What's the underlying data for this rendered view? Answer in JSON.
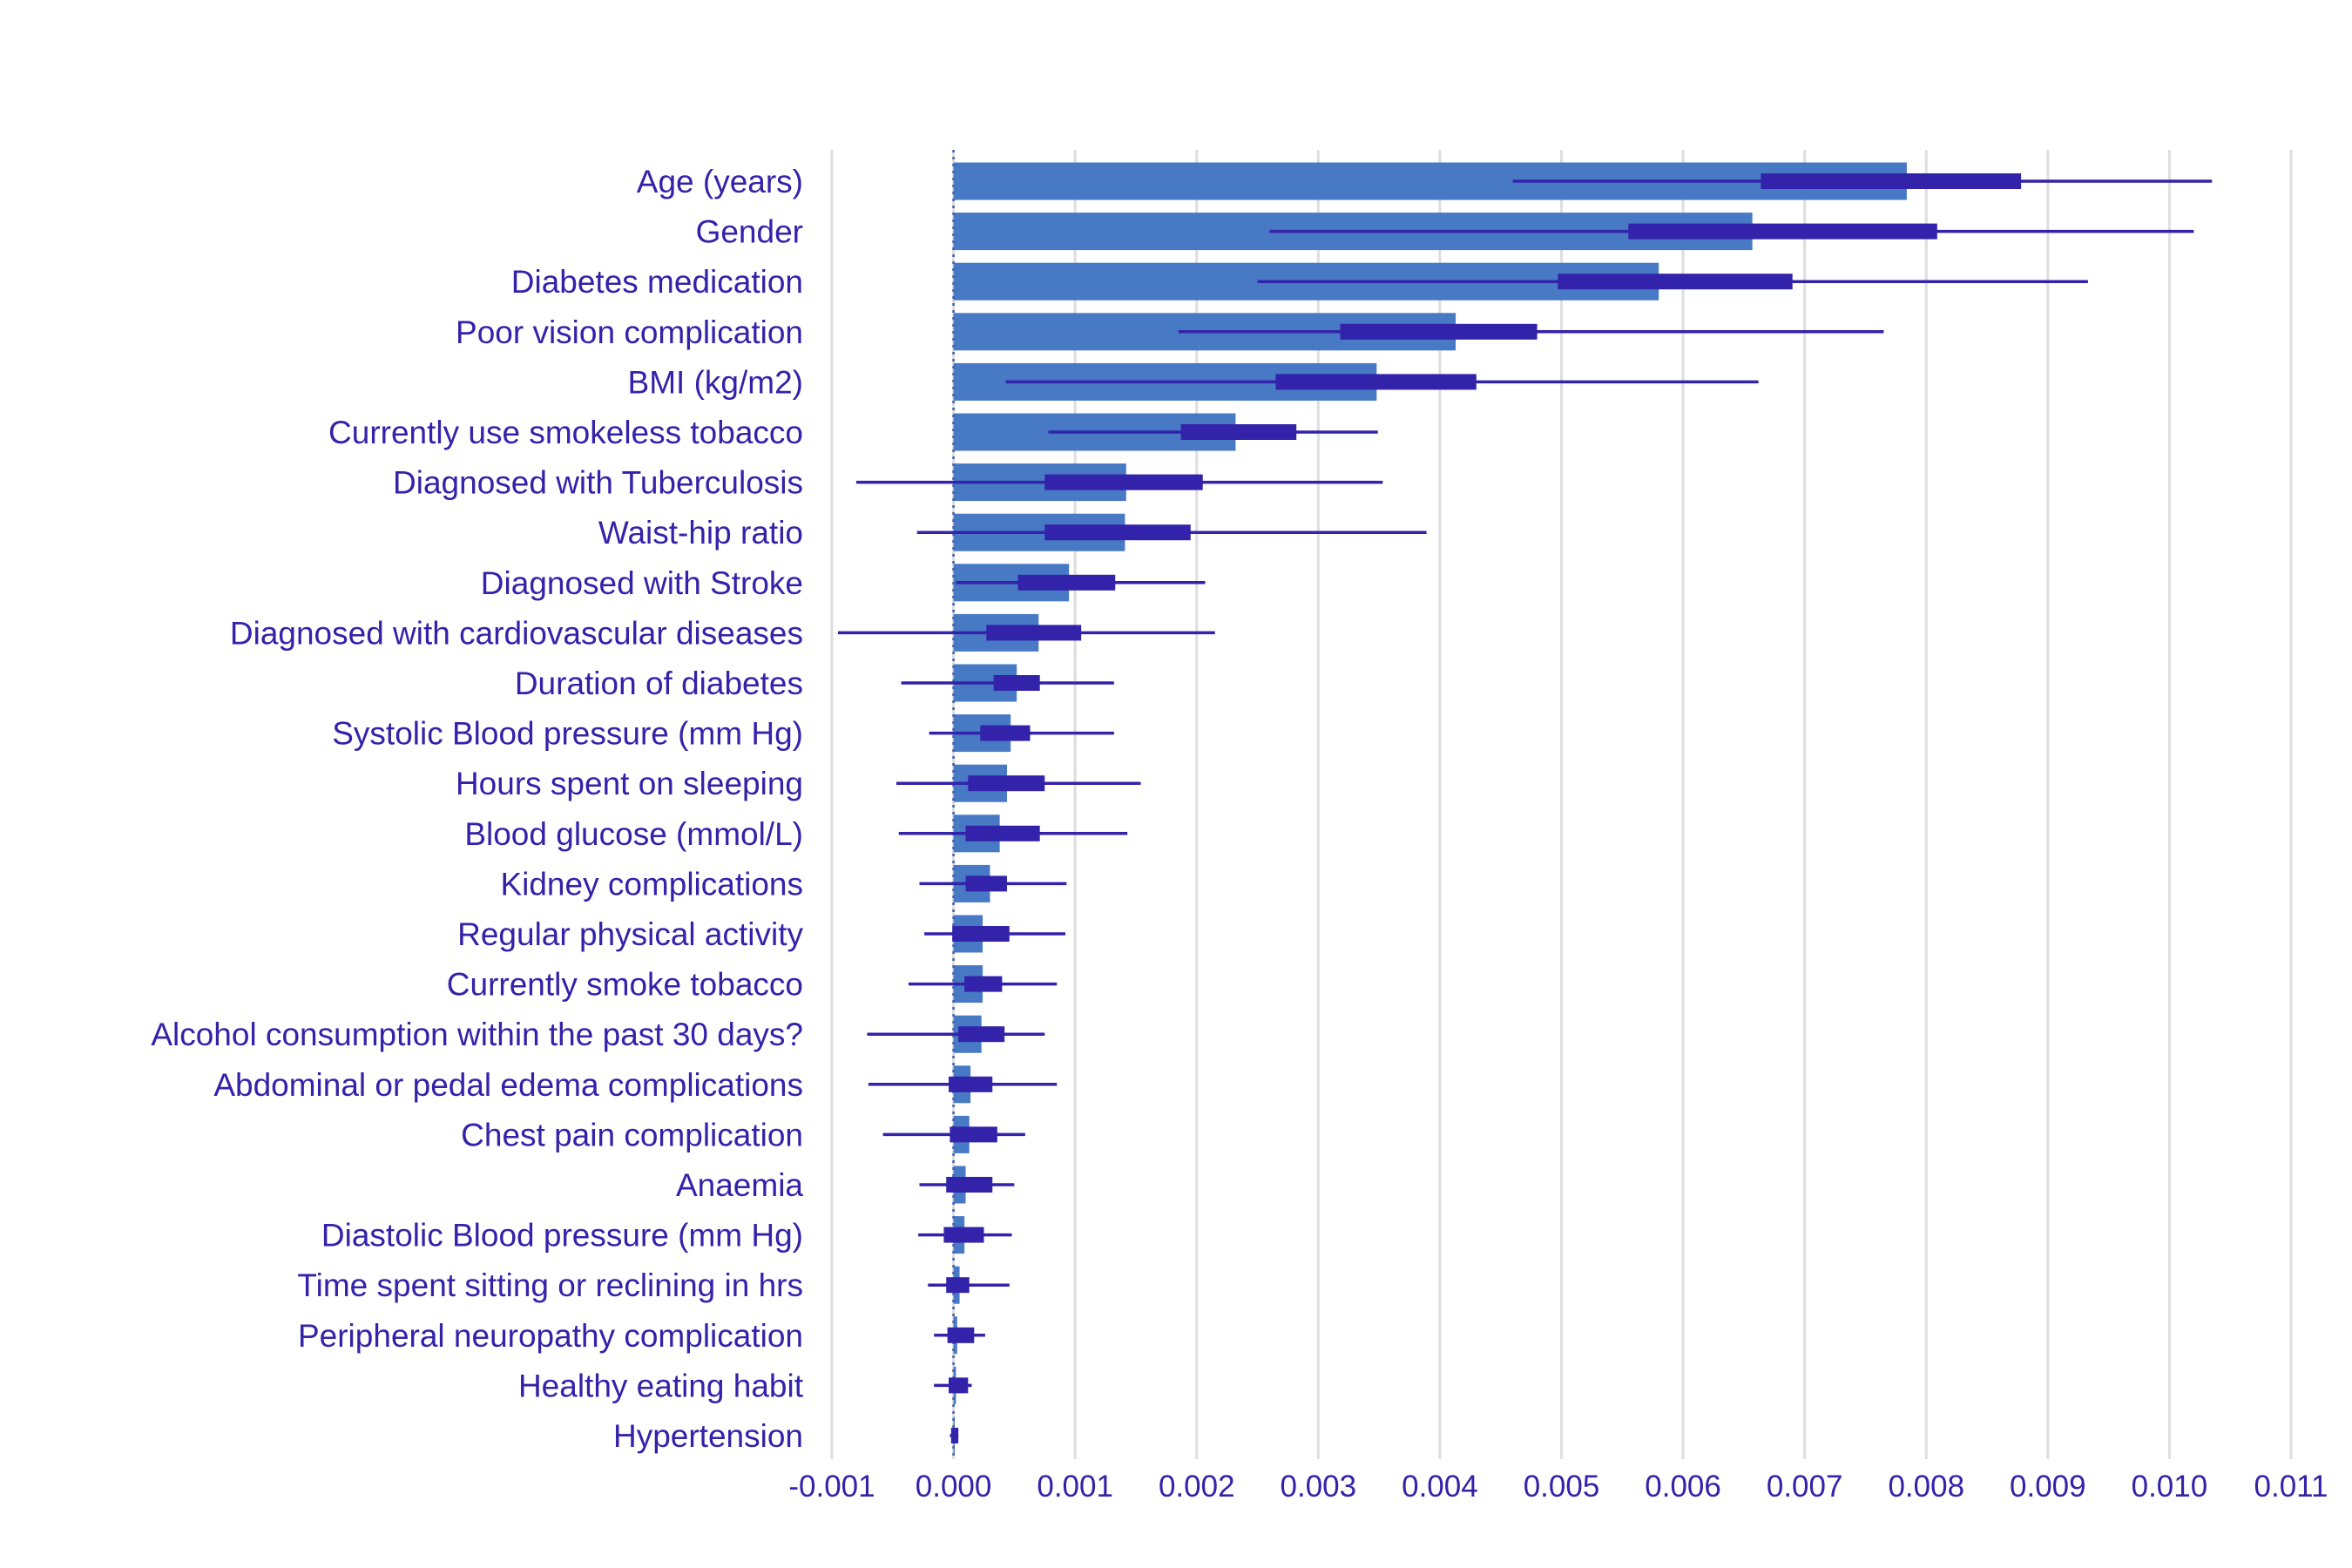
{
  "chart_data": {
    "type": "bar",
    "title": "",
    "xlabel": "",
    "ylabel": "",
    "xlim": [
      -0.001,
      0.011
    ],
    "xticks": [
      -0.001,
      0.0,
      0.001,
      0.002,
      0.003,
      0.004,
      0.005,
      0.006,
      0.007,
      0.008,
      0.009,
      0.01,
      0.011
    ],
    "xtick_labels": [
      "-0.001",
      "0.000",
      "0.001",
      "0.002",
      "0.003",
      "0.004",
      "0.005",
      "0.006",
      "0.007",
      "0.008",
      "0.009",
      "0.010",
      "0.011"
    ],
    "grid": true,
    "reference_line": 0.0,
    "colors": {
      "bar": "#4779C4",
      "interval": "#3322AA",
      "text": "#3322AA",
      "grid": "#DEDEDE"
    },
    "categories": [
      "Age (years)",
      "Gender",
      "Diabetes medication",
      "Poor vision complication",
      "BMI (kg/m2)",
      "Currently use smokeless tobacco",
      "Diagnosed with Tuberculosis",
      "Waist-hip ratio",
      "Diagnosed with Stroke",
      "Diagnosed with cardiovascular diseases",
      "Duration of diabetes",
      "Systolic Blood pressure (mm Hg)",
      "Hours spent on sleeping",
      "Blood glucose (mmol/L)",
      "Kidney complications",
      "Regular physical activity",
      "Currently smoke tobacco",
      "Alcohol consumption within the past 30 days?",
      "Abdominal or pedal edema complications",
      "Chest pain complication",
      "Anaemia",
      "Diastolic Blood pressure (mm Hg)",
      "Time spent sitting or reclining in hrs",
      "Peripheral neuropathy complication",
      "Healthy eating habit",
      "Hypertension"
    ],
    "values": [
      0.00784,
      0.00657,
      0.0058,
      0.00413,
      0.00348,
      0.00232,
      0.00142,
      0.00141,
      0.00095,
      0.0007,
      0.00052,
      0.00047,
      0.00044,
      0.00038,
      0.0003,
      0.00024,
      0.00024,
      0.00023,
      0.00014,
      0.00013,
      0.0001,
      9e-05,
      5e-05,
      3e-05,
      2e-05,
      1e-05
    ],
    "interval_outer": [
      [
        0.0046,
        0.01035
      ],
      [
        0.0026,
        0.0102
      ],
      [
        0.0025,
        0.00933
      ],
      [
        0.00185,
        0.00765
      ],
      [
        0.00043,
        0.00662
      ],
      [
        0.00078,
        0.00349
      ],
      [
        -0.0008,
        0.00353
      ],
      [
        -0.0003,
        0.00389
      ],
      [
        2e-05,
        0.00207
      ],
      [
        -0.00095,
        0.00215
      ],
      [
        -0.00043,
        0.00132
      ],
      [
        -0.0002,
        0.00132
      ],
      [
        -0.00047,
        0.00154
      ],
      [
        -0.00045,
        0.00143
      ],
      [
        -0.00028,
        0.00093
      ],
      [
        -0.00024,
        0.00092
      ],
      [
        -0.00037,
        0.00085
      ],
      [
        -0.00071,
        0.00075
      ],
      [
        -0.0007,
        0.00085
      ],
      [
        -0.00058,
        0.00059
      ],
      [
        -0.00028,
        0.0005
      ],
      [
        -0.00029,
        0.00048
      ],
      [
        -0.00021,
        0.00046
      ],
      [
        -0.00016,
        0.00026
      ],
      [
        -0.00016,
        0.00015
      ],
      [
        -3e-05,
        4e-05
      ]
    ],
    "interval_inner": [
      [
        0.00664,
        0.00878
      ],
      [
        0.00555,
        0.00809
      ],
      [
        0.00497,
        0.0069
      ],
      [
        0.00318,
        0.0048
      ],
      [
        0.00265,
        0.0043
      ],
      [
        0.00187,
        0.00282
      ],
      [
        0.00075,
        0.00205
      ],
      [
        0.00075,
        0.00195
      ],
      [
        0.00053,
        0.00133
      ],
      [
        0.00027,
        0.00105
      ],
      [
        0.00033,
        0.00071
      ],
      [
        0.00022,
        0.00063
      ],
      [
        0.00012,
        0.00075
      ],
      [
        0.0001,
        0.00071
      ],
      [
        0.0001,
        0.00044
      ],
      [
        -1e-05,
        0.00046
      ],
      [
        9e-05,
        0.0004
      ],
      [
        4e-05,
        0.00042
      ],
      [
        -4e-05,
        0.00032
      ],
      [
        -3e-05,
        0.00036
      ],
      [
        -6e-05,
        0.00032
      ],
      [
        -8e-05,
        0.00025
      ],
      [
        -6e-05,
        0.00013
      ],
      [
        -5e-05,
        0.00017
      ],
      [
        -4e-05,
        0.00012
      ],
      [
        -2e-05,
        4e-05
      ]
    ]
  }
}
